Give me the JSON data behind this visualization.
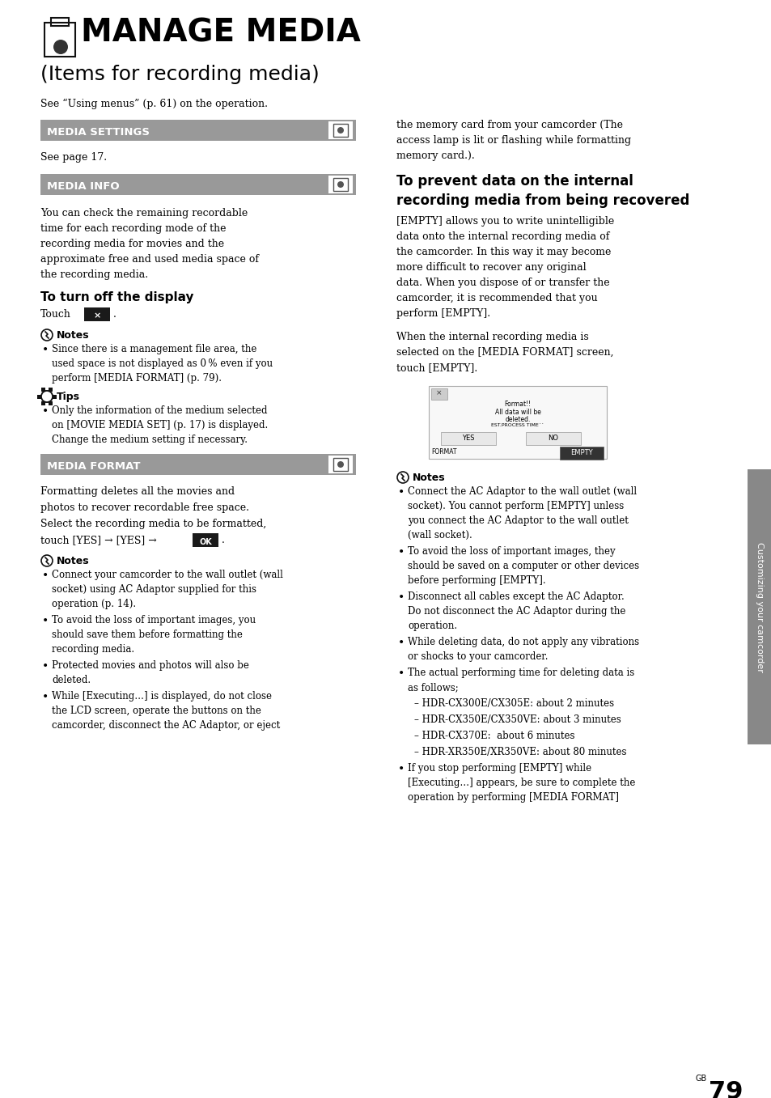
{
  "page_bg": "#ffffff",
  "page_number": "79",
  "header_bg": "#999999",
  "header_text_color": "#ffffff",
  "title_line1": "MANAGE MEDIA",
  "title_line2": "(Items for recording media)",
  "intro_left": "See “Using menus” (p. 61) on the operation.",
  "section1_header": "MEDIA SETTINGS",
  "section1_body": "See page 17.",
  "section2_header": "MEDIA INFO",
  "section2_body_lines": [
    "You can check the remaining recordable",
    "time for each recording mode of the",
    "recording media for movies and the",
    "approximate free and used media space of",
    "the recording media."
  ],
  "subsection2_title": "To turn off the display",
  "notes2_title": "Notes",
  "notes2_lines": [
    "Since there is a management file area, the",
    "used space is not displayed as 0 % even if you",
    "perform [MEDIA FORMAT] (p. 79)."
  ],
  "tips2_title": "Tips",
  "tips2_lines": [
    "Only the information of the medium selected",
    "on [MOVIE MEDIA SET] (p. 17) is displayed.",
    "Change the medium setting if necessary."
  ],
  "section3_header": "MEDIA FORMAT",
  "section3_body_lines": [
    "Formatting deletes all the movies and",
    "photos to recover recordable free space.",
    "Select the recording media to be formatted,"
  ],
  "notes3_title": "Notes",
  "notes3_bullets": [
    [
      "Connect your camcorder to the wall outlet (wall",
      "socket) using AC Adaptor supplied for this",
      "operation (p. 14)."
    ],
    [
      "To avoid the loss of important images, you",
      "should save them before formatting the",
      "recording media."
    ],
    [
      "Protected movies and photos will also be",
      "deleted."
    ],
    [
      "While [Executing…] is displayed, do not close",
      "the LCD screen, operate the buttons on the",
      "camcorder, disconnect the AC Adaptor, or eject"
    ]
  ],
  "right_col_top_lines": [
    "the memory card from your camcorder (The",
    "access lamp is lit or flashing while formatting",
    "memory card.)."
  ],
  "right_prevent_title_lines": [
    "To prevent data on the internal",
    "recording media from being recovered"
  ],
  "right_prevent_body_lines": [
    "[EMPTY] allows you to write unintelligible",
    "data onto the internal recording media of",
    "the camcorder. In this way it may become",
    "more difficult to recover any original",
    "data. When you dispose of or transfer the",
    "camcorder, it is recommended that you",
    "perform [EMPTY]."
  ],
  "right_when_lines": [
    "When the internal recording media is",
    "selected on the [MEDIA FORMAT] screen,",
    "touch [EMPTY]."
  ],
  "right_notes_title": "Notes",
  "right_notes_bullets": [
    [
      "Connect the AC Adaptor to the wall outlet (wall",
      "socket). You cannot perform [EMPTY] unless",
      "you connect the AC Adaptor to the wall outlet",
      "(wall socket)."
    ],
    [
      "To avoid the loss of important images, they",
      "should be saved on a computer or other devices",
      "before performing [EMPTY]."
    ],
    [
      "Disconnect all cables except the AC Adaptor.",
      "Do not disconnect the AC Adaptor during the",
      "operation."
    ],
    [
      "While deleting data, do not apply any vibrations",
      "or shocks to your camcorder."
    ],
    [
      "The actual performing time for deleting data is",
      "as follows;"
    ],
    [
      "– HDR-CX300E/CX305E: about 2 minutes"
    ],
    [
      "– HDR-CX350E/CX350VE: about 3 minutes"
    ],
    [
      "– HDR-CX370E:  about 6 minutes"
    ],
    [
      "– HDR-XR350E/XR350VE: about 80 minutes"
    ],
    [
      "If you stop performing [EMPTY] while",
      "[Executing…] appears, be sure to complete the",
      "operation by performing [MEDIA FORMAT]"
    ]
  ],
  "sidebar_text": "Customizing your camcorder",
  "sidebar_bg": "#888888"
}
